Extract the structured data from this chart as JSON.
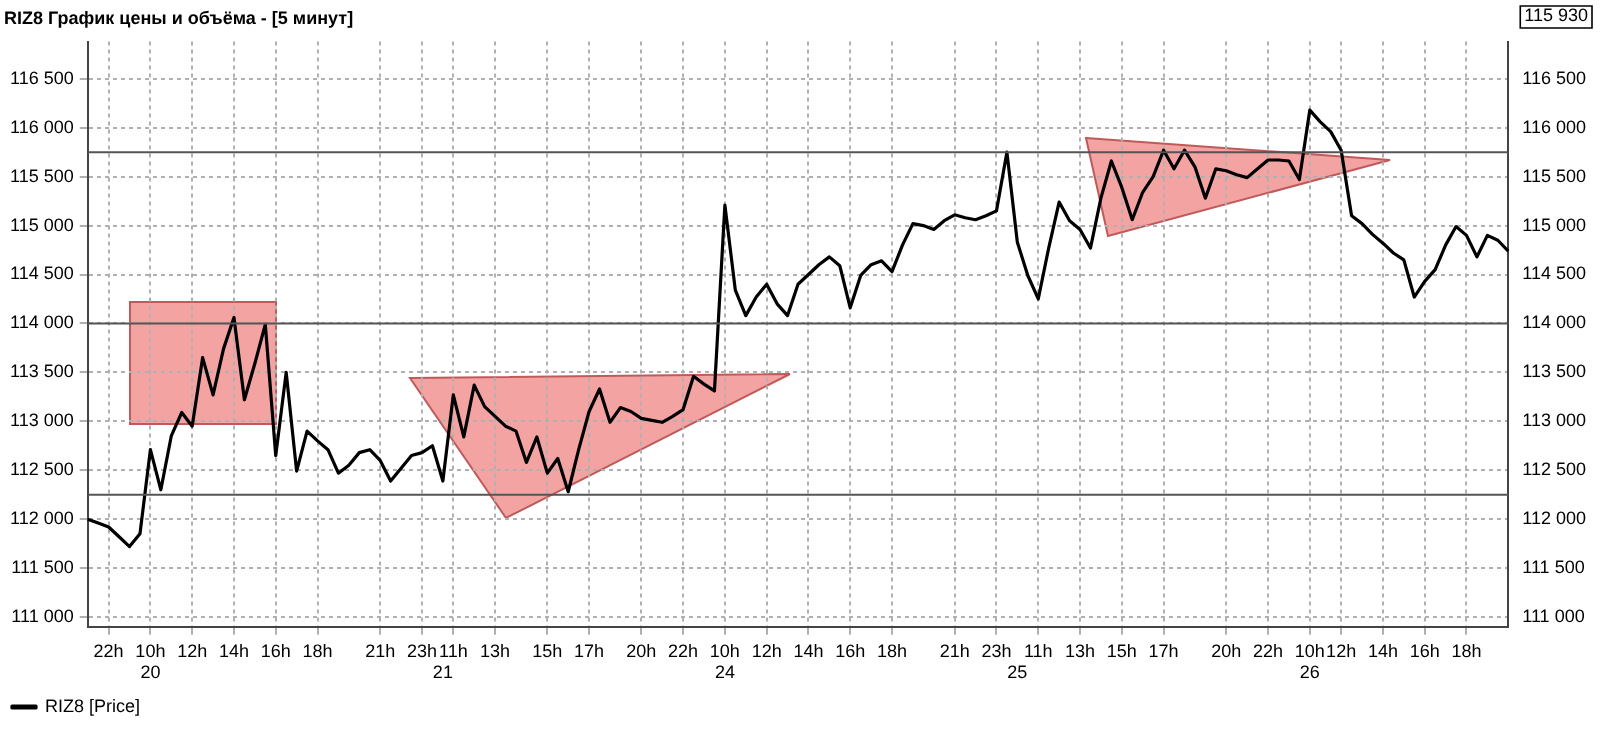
{
  "chart_data": {
    "type": "line",
    "title": "RIZ8 График цены и объёма - [5 минут]",
    "categories": [
      null,
      null,
      "22h",
      null,
      null,
      null,
      "10h\n20",
      null,
      null,
      null,
      "12h",
      null,
      null,
      null,
      "14h",
      null,
      null,
      null,
      "16h",
      null,
      null,
      null,
      "18h",
      null,
      null,
      null,
      null,
      null,
      "21h",
      null,
      null,
      null,
      "23h",
      null,
      "\n21",
      "11h",
      null,
      null,
      null,
      "13h",
      null,
      null,
      null,
      null,
      "15h",
      null,
      null,
      null,
      "17h",
      null,
      null,
      null,
      null,
      "20h",
      null,
      null,
      null,
      "22h",
      null,
      null,
      null,
      "10h\n24",
      null,
      null,
      null,
      "12h",
      null,
      null,
      null,
      "14h",
      null,
      null,
      null,
      "16h",
      null,
      null,
      null,
      "18h",
      null,
      null,
      null,
      null,
      null,
      "21h",
      null,
      null,
      null,
      "23h",
      null,
      "\n25",
      null,
      "11h",
      null,
      null,
      null,
      "13h",
      null,
      null,
      null,
      "15h",
      null,
      null,
      null,
      "17h",
      null,
      null,
      null,
      null,
      null,
      "20h",
      null,
      null,
      null,
      "22h",
      null,
      null,
      null,
      "10h\n26",
      null,
      null,
      "12h",
      null,
      null,
      null,
      "14h",
      null,
      null,
      null,
      "16h",
      null,
      null,
      null,
      "18h",
      null,
      null,
      null,
      null
    ],
    "ylim": [
      110900,
      116880
    ],
    "yticks": [
      {
        "value": 111000,
        "label": "111 000"
      },
      {
        "value": 111500,
        "label": "111 500"
      },
      {
        "value": 112000,
        "label": "112 000"
      },
      {
        "value": 112500,
        "label": "112 500"
      },
      {
        "value": 113000,
        "label": "113 000"
      },
      {
        "value": 113500,
        "label": "113 500"
      },
      {
        "value": 114000,
        "label": "114 000"
      },
      {
        "value": 114500,
        "label": "114 500"
      },
      {
        "value": 115000,
        "label": "115 000"
      },
      {
        "value": 115500,
        "label": "115 500"
      },
      {
        "value": 116000,
        "label": "116 000"
      },
      {
        "value": 116500,
        "label": "116 500"
      }
    ],
    "y2lim": [
      110900,
      116880
    ],
    "y2ticks": [
      {
        "value": 111000,
        "label": "111 000"
      },
      {
        "value": 111500,
        "label": "111 500"
      },
      {
        "value": 112000,
        "label": "112 000"
      },
      {
        "value": 112500,
        "label": "112 500"
      },
      {
        "value": 113000,
        "label": "113 000"
      },
      {
        "value": 113500,
        "label": "113 500"
      },
      {
        "value": 114000,
        "label": "114 000"
      },
      {
        "value": 114500,
        "label": "114 500"
      },
      {
        "value": 115000,
        "label": "115 000"
      },
      {
        "value": 115500,
        "label": "115 500"
      },
      {
        "value": 116000,
        "label": "116 000"
      },
      {
        "value": 116500,
        "label": "116 500"
      }
    ],
    "grid": true,
    "legend": "bottom left",
    "marker": "none",
    "line_style": "solid",
    "ref_lines": [
      {
        "axis": "y",
        "value": 115750,
        "color": "#555555"
      },
      {
        "axis": "y",
        "value": 114000,
        "color": "#555555"
      },
      {
        "axis": "y",
        "value": 112250,
        "color": "#555555"
      }
    ],
    "annotations": [
      "115 930"
    ],
    "series": [
      {
        "name": "RIZ8 [Price]",
        "color": "#000000",
        "values": [
          112000,
          111960,
          111920,
          111820,
          111720,
          111850,
          112710,
          112300,
          112850,
          113090,
          112950,
          113650,
          113270,
          113740,
          114060,
          113220,
          113590,
          113990,
          112650,
          113500,
          112490,
          112900,
          112800,
          112710,
          112470,
          112550,
          112680,
          112710,
          112600,
          112390,
          112520,
          112650,
          112680,
          112750,
          112390,
          113270,
          112840,
          113370,
          113150,
          113050,
          112950,
          112900,
          112580,
          112840,
          112470,
          112620,
          112280,
          112710,
          113100,
          113330,
          112990,
          113140,
          113100,
          113030,
          113010,
          112990,
          113050,
          113120,
          113460,
          113380,
          113310,
          115210,
          114340,
          114080,
          114270,
          114400,
          114200,
          114080,
          114400,
          114500,
          114600,
          114680,
          114590,
          114160,
          114490,
          114600,
          114640,
          114530,
          114800,
          115020,
          115000,
          114960,
          115050,
          115110,
          115080,
          115060,
          115100,
          115150,
          115750,
          114830,
          114490,
          114250,
          114770,
          115240,
          115050,
          114960,
          114770,
          115280,
          115660,
          115390,
          115060,
          115340,
          115500,
          115770,
          115580,
          115770,
          115600,
          115280,
          115580,
          115560,
          115520,
          115490,
          115580,
          115670,
          115670,
          115660,
          115470,
          116180,
          116060,
          115960,
          115770,
          115100,
          115020,
          114910,
          114820,
          114720,
          114650,
          114270,
          114430,
          114550,
          114800,
          114990,
          114900,
          114680,
          114900,
          114850,
          114740
        ]
      }
    ]
  }
}
